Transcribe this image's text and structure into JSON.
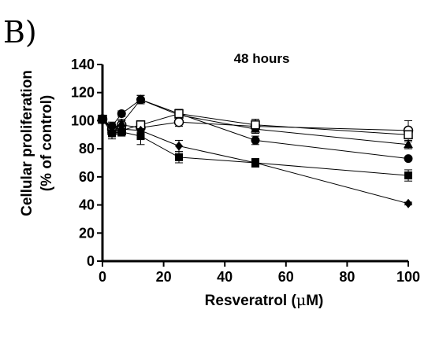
{
  "panel_label": "B)",
  "chart_data": {
    "type": "line",
    "title": "48 hours",
    "xlabel_prefix": "Resveratrol (",
    "xlabel_mu": "μ",
    "xlabel_suffix": "M)",
    "ylabel_line1": "Cellular proliferation",
    "ylabel_line2": "(% of control)",
    "xlim": [
      0,
      100
    ],
    "ylim": [
      0,
      140
    ],
    "xticks": [
      "0",
      "20",
      "40",
      "60",
      "80",
      "100"
    ],
    "yticks": [
      "0",
      "20",
      "40",
      "60",
      "80",
      "100",
      "120",
      "140"
    ],
    "grid": false,
    "legend": "none",
    "series": [
      {
        "marker": "filled-circle",
        "x": [
          0,
          3.1,
          6.25,
          12.5,
          25,
          50,
          100
        ],
        "y": [
          101,
          96,
          105,
          115,
          105,
          86,
          73
        ],
        "err": [
          2,
          3,
          2,
          3,
          3,
          3,
          1
        ]
      },
      {
        "marker": "open-circle",
        "x": [
          0,
          3.1,
          6.25,
          12.5,
          25,
          50,
          100
        ],
        "y": [
          101,
          94,
          97,
          95,
          99,
          96,
          93
        ],
        "err": [
          2,
          3,
          3,
          3,
          3,
          5,
          7
        ]
      },
      {
        "marker": "filled-triangle",
        "x": [
          0,
          3.1,
          6.25,
          12.5,
          25,
          50,
          100
        ],
        "y": [
          101,
          94,
          98,
          115,
          104,
          94,
          83
        ],
        "err": [
          2,
          3,
          3,
          3,
          3,
          3,
          3
        ]
      },
      {
        "marker": "open-square",
        "x": [
          0,
          3.1,
          6.25,
          12.5,
          25,
          50,
          100
        ],
        "y": [
          101,
          93,
          93,
          97,
          105,
          97,
          90
        ],
        "err": [
          2,
          3,
          3,
          3,
          3,
          4,
          5
        ]
      },
      {
        "marker": "filled-diamond",
        "x": [
          0,
          3.1,
          6.25,
          12.5,
          25,
          50,
          100
        ],
        "y": [
          101,
          95,
          94,
          93,
          82,
          70,
          41
        ],
        "err": [
          2,
          3,
          3,
          3,
          4,
          3,
          1
        ]
      },
      {
        "marker": "filled-square",
        "x": [
          0,
          3.1,
          6.25,
          12.5,
          25,
          50,
          100
        ],
        "y": [
          101,
          91,
          92,
          89,
          74,
          70,
          61
        ],
        "err": [
          2,
          4,
          3,
          6,
          4,
          3,
          4
        ]
      }
    ]
  }
}
